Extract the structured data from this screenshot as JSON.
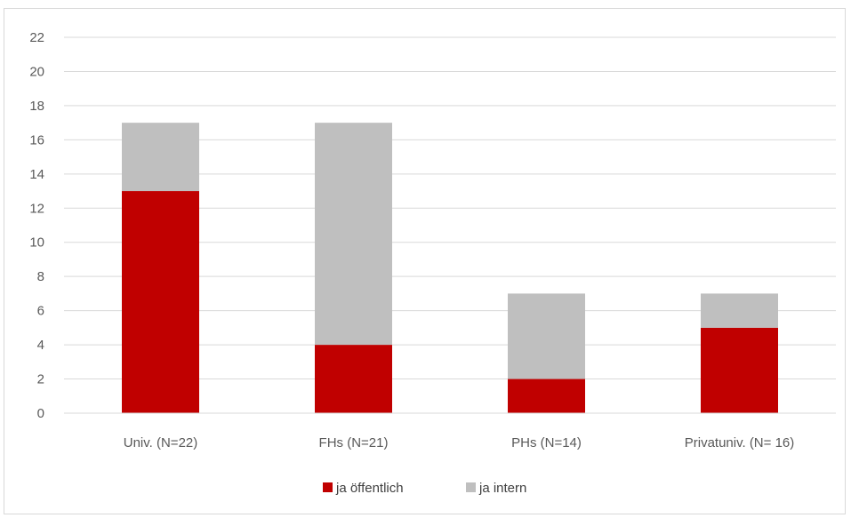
{
  "chart_data": {
    "type": "bar",
    "stacked": true,
    "categories": [
      "Univ. (N=22)",
      "FHs (N=21)",
      "PHs (N=14)",
      "Privatuniv. (N= 16)"
    ],
    "series": [
      {
        "name": "ja öffentlich",
        "values": [
          13,
          4,
          2,
          5
        ],
        "color": "#c00000"
      },
      {
        "name": "ja intern",
        "values": [
          4,
          13,
          5,
          2
        ],
        "color": "#bfbfbf"
      }
    ],
    "yticks": [
      0,
      2,
      4,
      6,
      8,
      10,
      12,
      14,
      16,
      18,
      20,
      22
    ],
    "ylim": [
      0,
      22
    ],
    "grid": true,
    "legend": "bottom-center",
    "gridColor": "#d9d9d9"
  }
}
